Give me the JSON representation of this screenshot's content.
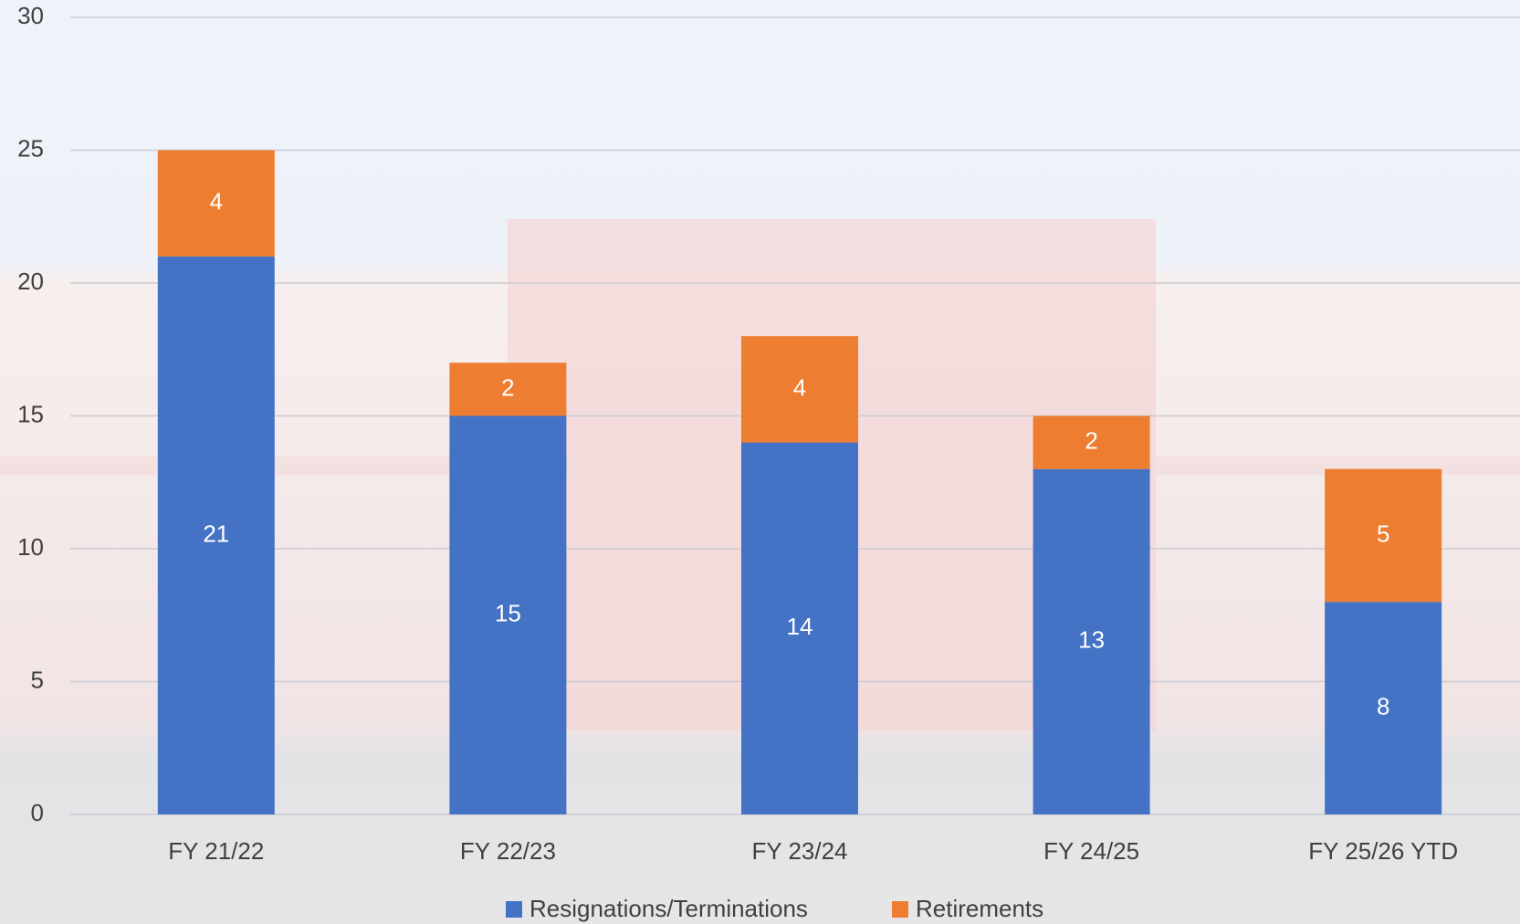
{
  "chart_data": {
    "type": "stacked_bar",
    "categories": [
      "FY 21/22",
      "FY 22/23",
      "FY 23/24",
      "FY 24/25",
      "FY 25/26 YTD"
    ],
    "series": [
      {
        "name": "Resignations/Terminations",
        "color": "#4472c4",
        "values": [
          21,
          15,
          14,
          13,
          8
        ]
      },
      {
        "name": "Retirements",
        "color": "#ed7d31",
        "values": [
          4,
          2,
          4,
          2,
          5
        ]
      }
    ],
    "ylim": [
      0,
      30
    ],
    "yticks": [
      0,
      5,
      10,
      15,
      20,
      25,
      30
    ],
    "grid": true
  }
}
